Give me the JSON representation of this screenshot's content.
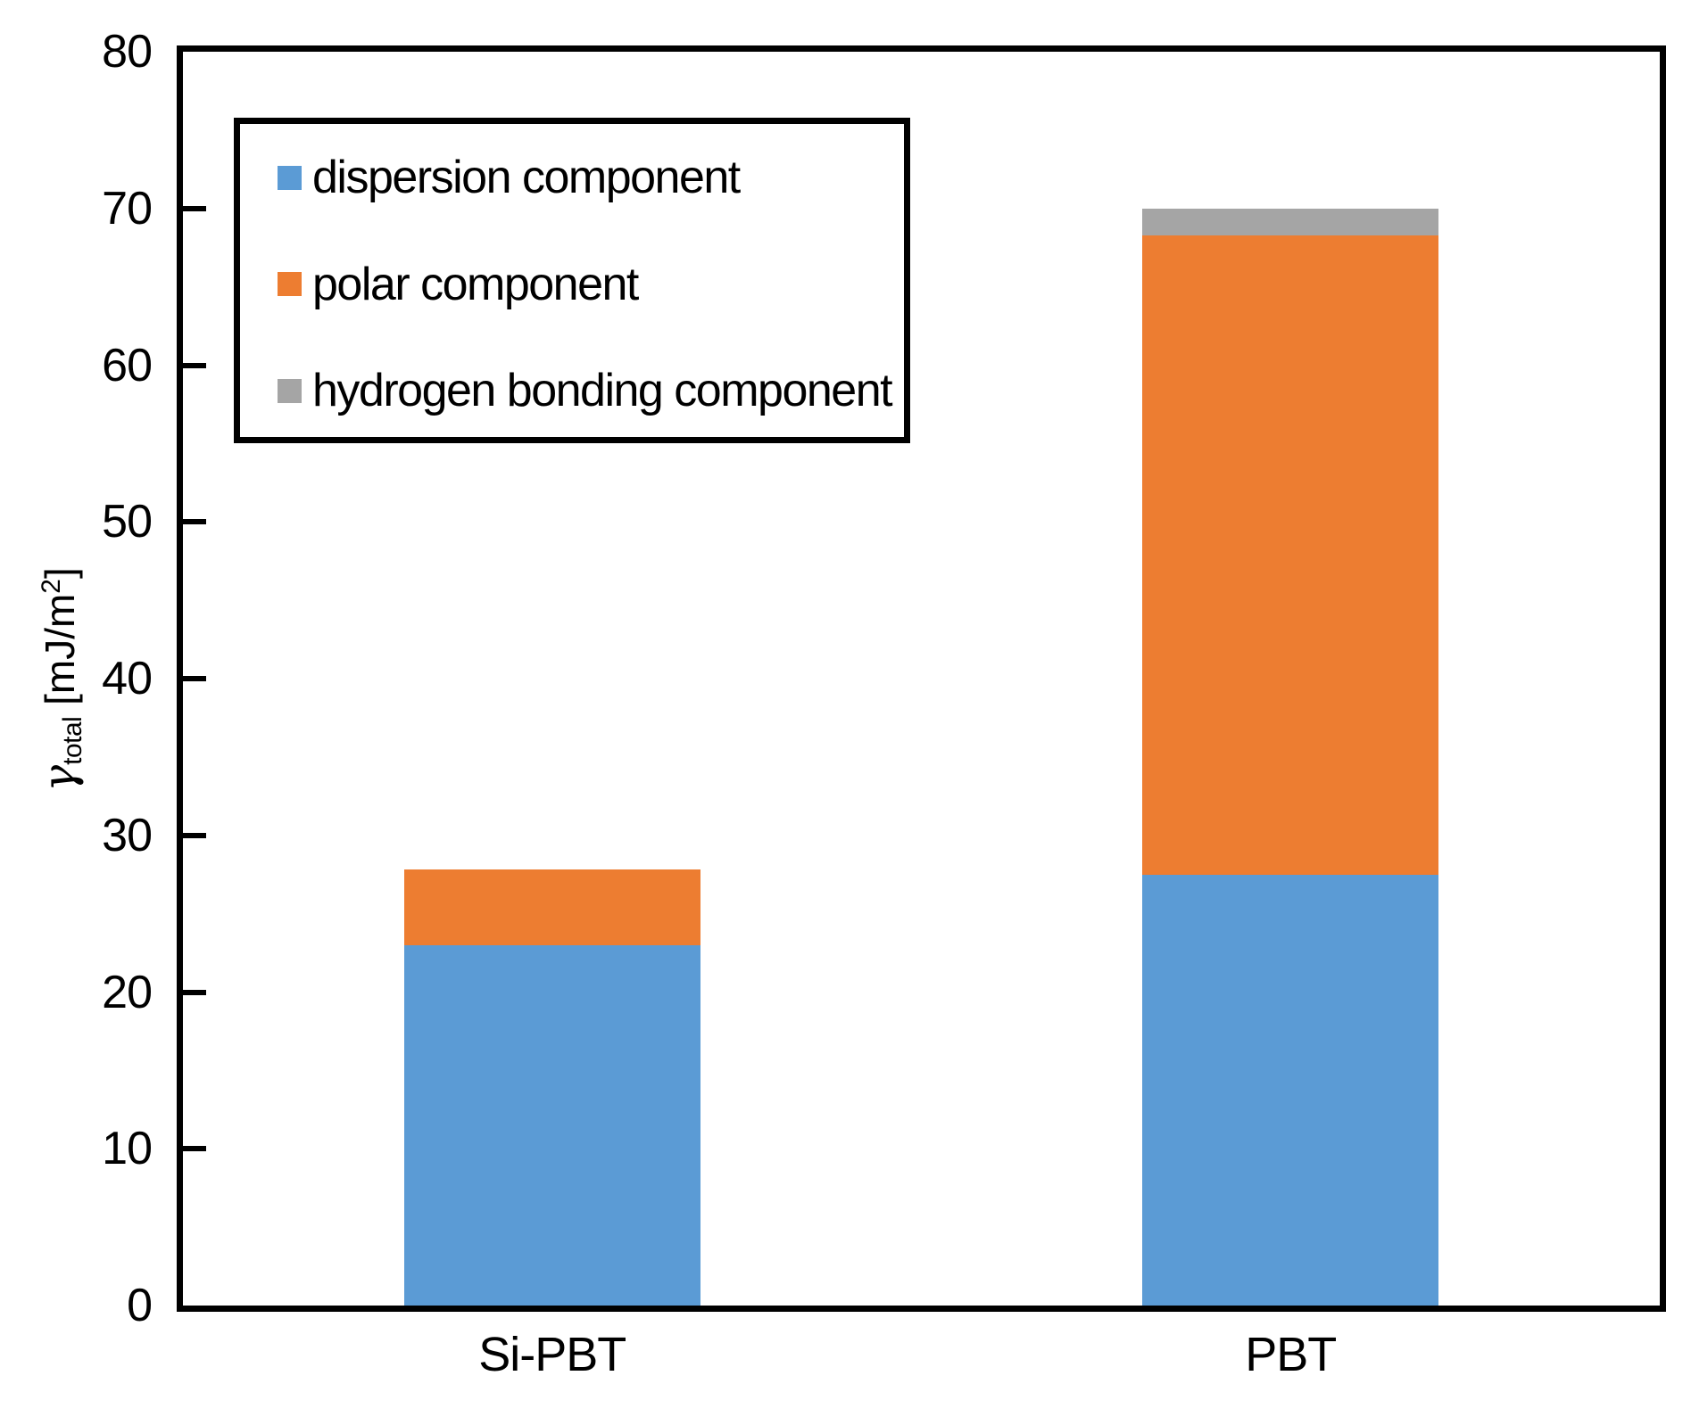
{
  "y_axis": {
    "min": 0,
    "max": 80,
    "ticks": [
      0,
      10,
      20,
      30,
      40,
      50,
      60,
      70,
      80
    ],
    "title_gamma": "γ",
    "title_subscript": "total",
    "title_unit_open": " [mJ/m",
    "title_superscript": "2",
    "title_unit_close": "]"
  },
  "chart_data": {
    "type": "bar",
    "stacked": true,
    "categories": [
      "Si-PBT",
      "PBT"
    ],
    "series": [
      {
        "name": "dispersion component",
        "color": "#5B9BD5",
        "values": [
          23.0,
          27.5
        ]
      },
      {
        "name": "polar component",
        "color": "#ED7D31",
        "values": [
          4.8,
          40.8
        ]
      },
      {
        "name": "hydrogen bonding component",
        "color": "#A5A5A5",
        "values": [
          0,
          1.7
        ]
      }
    ],
    "title": "",
    "xlabel": "",
    "ylabel": "γtotal [mJ/m2]",
    "ylim": [
      0,
      80
    ],
    "grid": false,
    "legend_position": "upper left",
    "colors": {
      "axis": "#000000",
      "background": "#FFFFFF"
    }
  }
}
